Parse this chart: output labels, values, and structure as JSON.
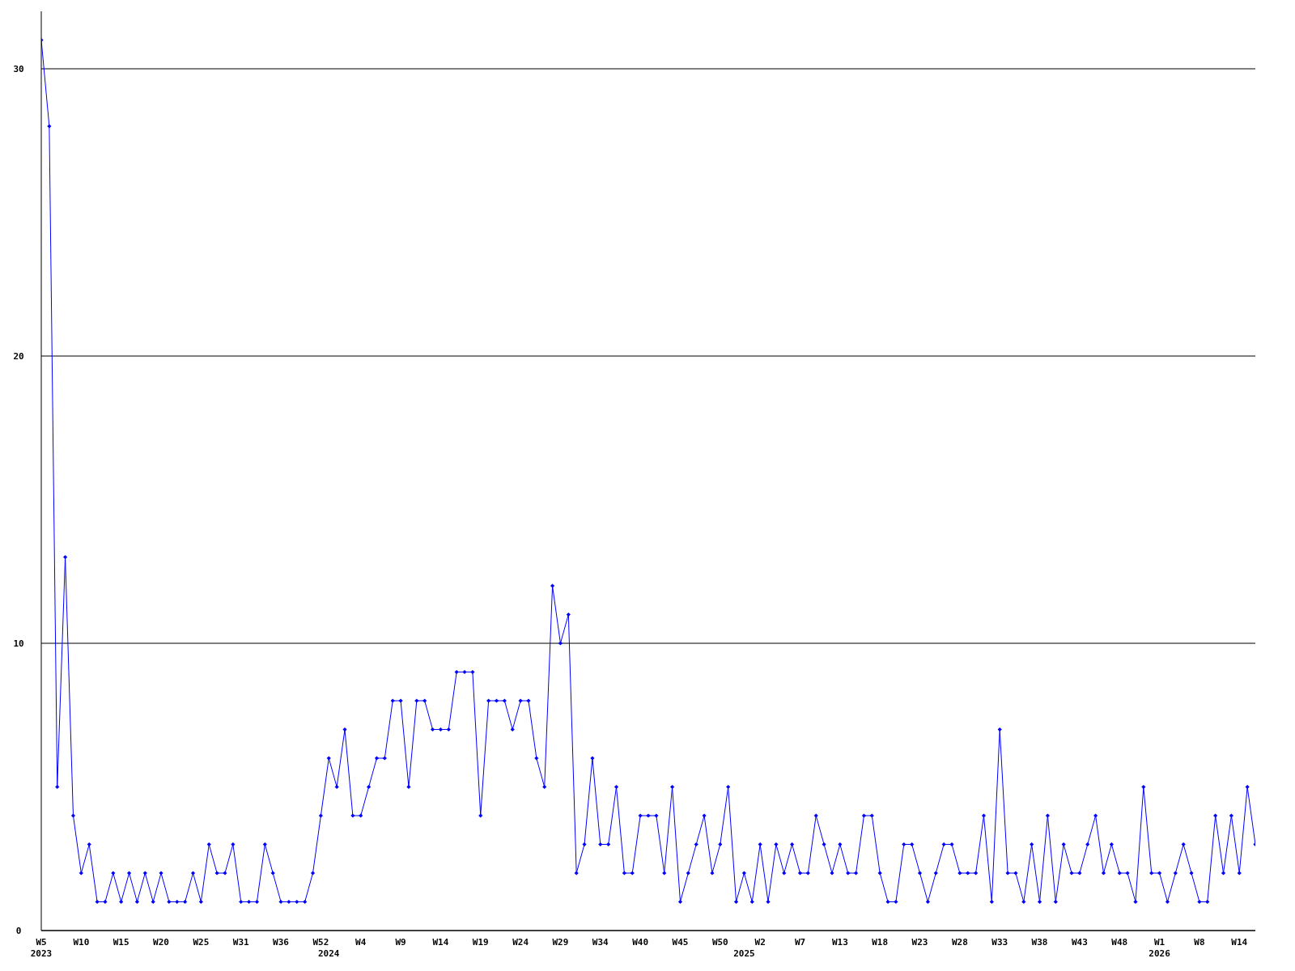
{
  "chart_data": {
    "type": "line",
    "categories": [
      "W5\n2023",
      null,
      null,
      null,
      null,
      "W10",
      null,
      null,
      null,
      null,
      "W15",
      null,
      null,
      null,
      null,
      "W20",
      null,
      null,
      null,
      null,
      "W25",
      null,
      null,
      null,
      null,
      "W31",
      null,
      null,
      null,
      null,
      "W36",
      null,
      null,
      null,
      null,
      "W52",
      "\n2024",
      null,
      null,
      null,
      "W4",
      null,
      null,
      null,
      null,
      "W9",
      null,
      null,
      null,
      null,
      "W14",
      null,
      null,
      null,
      null,
      "W19",
      null,
      null,
      null,
      null,
      "W24",
      null,
      null,
      null,
      null,
      "W29",
      null,
      null,
      null,
      null,
      "W34",
      null,
      null,
      null,
      null,
      "W40",
      null,
      null,
      null,
      null,
      "W45",
      null,
      null,
      null,
      null,
      "W50",
      null,
      null,
      "\n2025",
      null,
      "W2",
      null,
      null,
      null,
      null,
      "W7",
      null,
      null,
      null,
      null,
      "W13",
      null,
      null,
      null,
      null,
      "W18",
      null,
      null,
      null,
      null,
      "W23",
      null,
      null,
      null,
      null,
      "W28",
      null,
      null,
      null,
      null,
      "W33",
      null,
      null,
      null,
      null,
      "W38",
      null,
      null,
      null,
      null,
      "W43",
      null,
      null,
      null,
      null,
      "W48",
      null,
      null,
      null,
      null,
      "W1\n2026",
      null,
      null,
      null,
      null,
      "W8",
      null,
      null,
      null,
      null,
      "W14",
      null,
      null
    ],
    "series": [
      {
        "color": "#0000ff",
        "values": [
          31,
          28,
          5,
          13,
          4,
          2,
          3,
          1,
          1,
          2,
          1,
          2,
          1,
          2,
          1,
          2,
          1,
          1,
          1,
          2,
          1,
          3,
          2,
          2,
          3,
          1,
          1,
          1,
          3,
          2,
          1,
          1,
          1,
          1,
          2,
          4,
          6,
          5,
          7,
          4,
          4,
          5,
          6,
          6,
          8,
          8,
          5,
          8,
          8,
          7,
          7,
          7,
          9,
          9,
          9,
          4,
          8,
          8,
          8,
          7,
          8,
          8,
          6,
          5,
          12,
          10,
          11,
          2,
          3,
          6,
          3,
          3,
          5,
          2,
          2,
          4,
          4,
          4,
          2,
          5,
          1,
          2,
          3,
          4,
          2,
          3,
          5,
          1,
          2,
          1,
          3,
          1,
          3,
          2,
          3,
          2,
          2,
          4,
          3,
          2,
          3,
          2,
          2,
          4,
          4,
          2,
          1,
          1,
          3,
          3,
          2,
          1,
          2,
          3,
          3,
          2,
          2,
          2,
          4,
          1,
          7,
          2,
          2,
          1,
          3,
          1,
          4,
          1,
          3,
          2,
          2,
          3,
          4,
          2,
          3,
          2,
          2,
          1,
          5,
          2,
          2,
          1,
          2,
          3,
          2,
          1,
          1,
          4,
          2,
          4,
          2,
          5,
          3
        ]
      }
    ],
    "ylim": [
      0,
      32
    ],
    "yticks": [
      0,
      10,
      20,
      30
    ],
    "grid": "y",
    "marker": "diamond",
    "line_style": "solid",
    "legend": false
  }
}
